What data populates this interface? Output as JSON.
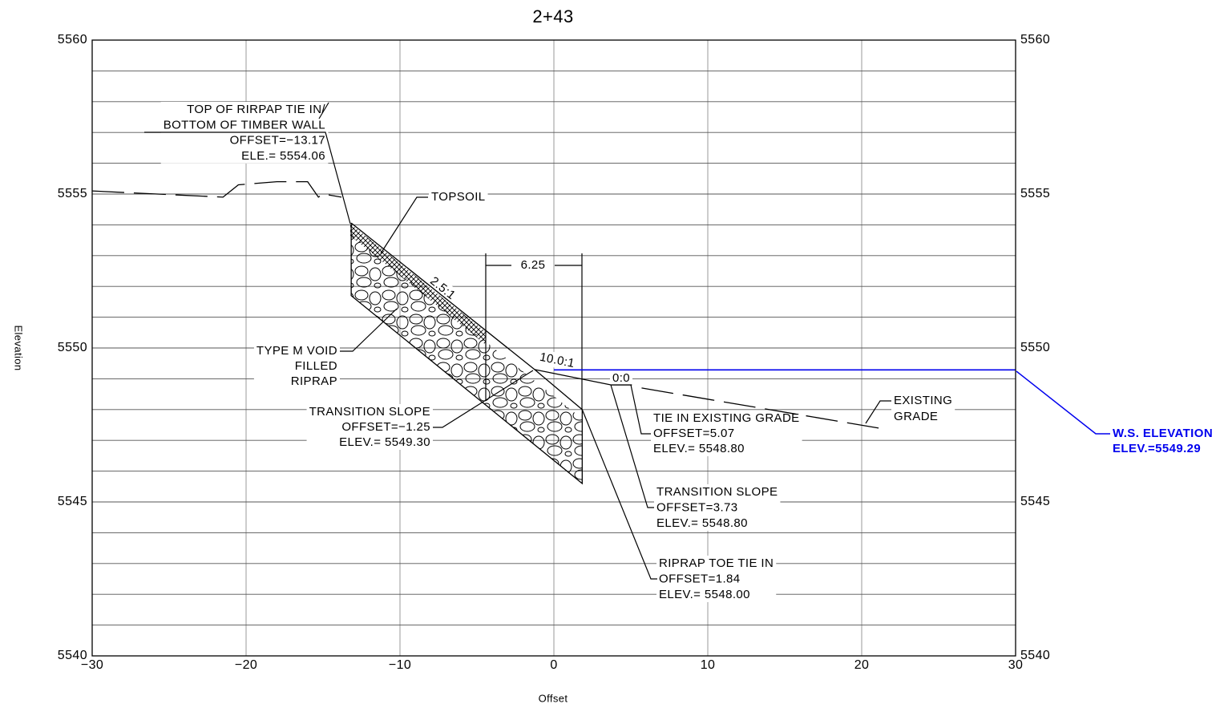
{
  "chart_data": {
    "type": "line",
    "title": "2+43",
    "x_label": "Offset",
    "y_label": "Elevation",
    "xlim": [
      -30,
      30
    ],
    "ylim": [
      5540,
      5560
    ],
    "xticks": [
      {
        "value": -30,
        "label": "−30"
      },
      {
        "value": -20,
        "label": "−20"
      },
      {
        "value": -10,
        "label": "−10"
      },
      0,
      10,
      20,
      30
    ],
    "yticks": [
      5540,
      5545,
      5550,
      5555,
      5560
    ],
    "yticks_minor": [
      5541,
      5542,
      5543,
      5544,
      5546,
      5547,
      5548,
      5549,
      5551,
      5552,
      5553,
      5554,
      5556,
      5557,
      5558,
      5559
    ],
    "grid": true,
    "series": [
      {
        "color": "#000000",
        "dashed": true,
        "x": [
          -30,
          -21.5,
          -20.5,
          -18,
          -16,
          -15.3,
          -15,
          -13.8
        ],
        "values": [
          5555.1,
          5554.9,
          5555.3,
          5555.4,
          5555.4,
          5554.9,
          5555.0,
          5554.9
        ]
      },
      {
        "color": "#000000",
        "dashed": false,
        "x": [
          -13.17,
          -1.25,
          1.84
        ],
        "values": [
          5554.06,
          5549.3,
          5548.0
        ]
      },
      {
        "color": "#000000",
        "dashed": false,
        "x": [
          -1.25,
          3.73,
          5.07
        ],
        "values": [
          5549.3,
          5548.8,
          5548.8
        ]
      },
      {
        "color": "#000000",
        "dashed": true,
        "x": [
          5.7,
          21.1
        ],
        "values": [
          5548.7,
          5547.4
        ]
      },
      {
        "color": "#000000",
        "dashed": false,
        "x": [
          -13.17,
          -13.17,
          1.84,
          1.84
        ],
        "values": [
          5554.06,
          5551.7,
          5545.6,
          5548.0
        ]
      },
      {
        "color": "#0000ee",
        "dashed": false,
        "x": [
          0,
          30
        ],
        "values": [
          5549.29,
          5549.29
        ]
      }
    ],
    "annotations": [
      [
        "TOP OF RIRPAP TIE IN/",
        "BOTTOM OF TIMBER WALL",
        "OFFSET=−13.17",
        "ELE.= 5554.06"
      ],
      [
        "TOPSOIL"
      ],
      [
        "2.5:1"
      ],
      [
        "6.25"
      ],
      [
        "10.0:1"
      ],
      [
        "0:0"
      ],
      [
        "TYPE M VOID",
        "FILLED",
        "RIPRAP"
      ],
      [
        "TRANSITION SLOPE",
        "OFFSET=−1.25",
        "ELEV.= 5549.30"
      ],
      [
        "TIE IN EXISTING GRADE",
        "OFFSET=5.07",
        "ELEV.= 5548.80"
      ],
      [
        "EXISTING",
        "GRADE"
      ],
      [
        "TRANSITION SLOPE",
        "OFFSET=3.73",
        "ELEV.= 5548.80"
      ],
      [
        "RIPRAP TOE TIE IN",
        "OFFSET=1.84",
        "ELEV.= 5548.00"
      ],
      [
        "W.S. ELEVATION",
        "ELEV.=5549.29"
      ]
    ]
  }
}
